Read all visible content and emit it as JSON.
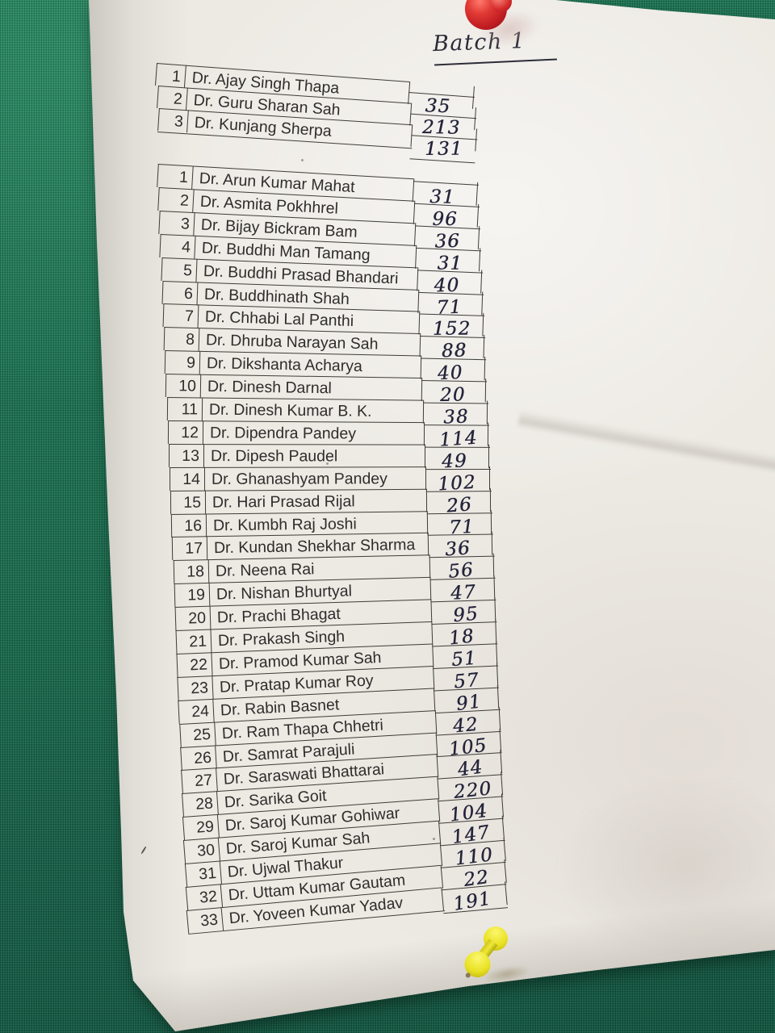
{
  "heading": {
    "text": "Batch 1"
  },
  "colors": {
    "board_green": "#1c6f51",
    "paper": "#edeae4",
    "table_line": "#3e3c38",
    "pen_ink": "#24243a",
    "red_pin": "#d42a2c",
    "yellow_pin": "#e9e122"
  },
  "tables": [
    {
      "name": "batch-summary",
      "rows": [
        {
          "no": "1",
          "name": "Dr. Ajay Singh Thapa",
          "count": "35"
        },
        {
          "no": "2",
          "name": "Dr. Guru Sharan Sah",
          "count": "213"
        },
        {
          "no": "3",
          "name": "Dr. Kunjang Sherpa",
          "count": "131"
        }
      ]
    },
    {
      "name": "doctor-list",
      "rows": [
        {
          "no": "1",
          "name": "Dr. Arun Kumar Mahat",
          "count": "31"
        },
        {
          "no": "2",
          "name": "Dr. Asmita Pokhhrel",
          "count": "96"
        },
        {
          "no": "3",
          "name": "Dr. Bijay Bickram Bam",
          "count": "36"
        },
        {
          "no": "4",
          "name": "Dr. Buddhi Man Tamang",
          "count": "31"
        },
        {
          "no": "5",
          "name": "Dr. Buddhi Prasad Bhandari",
          "count": "40"
        },
        {
          "no": "6",
          "name": "Dr. Buddhinath Shah",
          "count": "71"
        },
        {
          "no": "7",
          "name": "Dr. Chhabi Lal Panthi",
          "count": "152"
        },
        {
          "no": "8",
          "name": "Dr. Dhruba Narayan Sah",
          "count": "88"
        },
        {
          "no": "9",
          "name": "Dr. Dikshanta Acharya",
          "count": "40"
        },
        {
          "no": "10",
          "name": "Dr. Dinesh Darnal",
          "count": "20"
        },
        {
          "no": "11",
          "name": "Dr. Dinesh Kumar B. K.",
          "count": "38"
        },
        {
          "no": "12",
          "name": "Dr. Dipendra Pandey",
          "count": "114"
        },
        {
          "no": "13",
          "name": "Dr. Dipesh Paudel",
          "count": "49"
        },
        {
          "no": "14",
          "name": "Dr. Ghanashyam Pandey",
          "count": "102"
        },
        {
          "no": "15",
          "name": "Dr. Hari Prasad Rijal",
          "count": "26"
        },
        {
          "no": "16",
          "name": "Dr. Kumbh Raj Joshi",
          "count": "71"
        },
        {
          "no": "17",
          "name": "Dr. Kundan Shekhar Sharma",
          "count": "36"
        },
        {
          "no": "18",
          "name": "Dr. Neena Rai",
          "count": "56"
        },
        {
          "no": "19",
          "name": "Dr. Nishan Bhurtyal",
          "count": "47"
        },
        {
          "no": "20",
          "name": "Dr. Prachi Bhagat",
          "count": "95"
        },
        {
          "no": "21",
          "name": "Dr. Prakash Singh",
          "count": "18"
        },
        {
          "no": "22",
          "name": "Dr. Pramod Kumar Sah",
          "count": "51"
        },
        {
          "no": "23",
          "name": "Dr. Pratap Kumar Roy",
          "count": "57"
        },
        {
          "no": "24",
          "name": "Dr. Rabin Basnet",
          "count": "91"
        },
        {
          "no": "25",
          "name": "Dr. Ram Thapa Chhetri",
          "count": "42"
        },
        {
          "no": "26",
          "name": "Dr. Samrat Parajuli",
          "count": "105"
        },
        {
          "no": "27",
          "name": "Dr. Saraswati Bhattarai",
          "count": "44"
        },
        {
          "no": "28",
          "name": "Dr. Sarika Goit",
          "count": "220"
        },
        {
          "no": "29",
          "name": "Dr. Saroj Kumar Gohiwar",
          "count": "104"
        },
        {
          "no": "30",
          "name": "Dr. Saroj Kumar Sah",
          "count": "147"
        },
        {
          "no": "31",
          "name": "Dr. Ujwal Thakur",
          "count": "110"
        },
        {
          "no": "32",
          "name": "Dr. Uttam Kumar Gautam",
          "count": "22"
        },
        {
          "no": "33",
          "name": "Dr. Yoveen Kumar Yadav",
          "count": "191"
        }
      ]
    }
  ]
}
